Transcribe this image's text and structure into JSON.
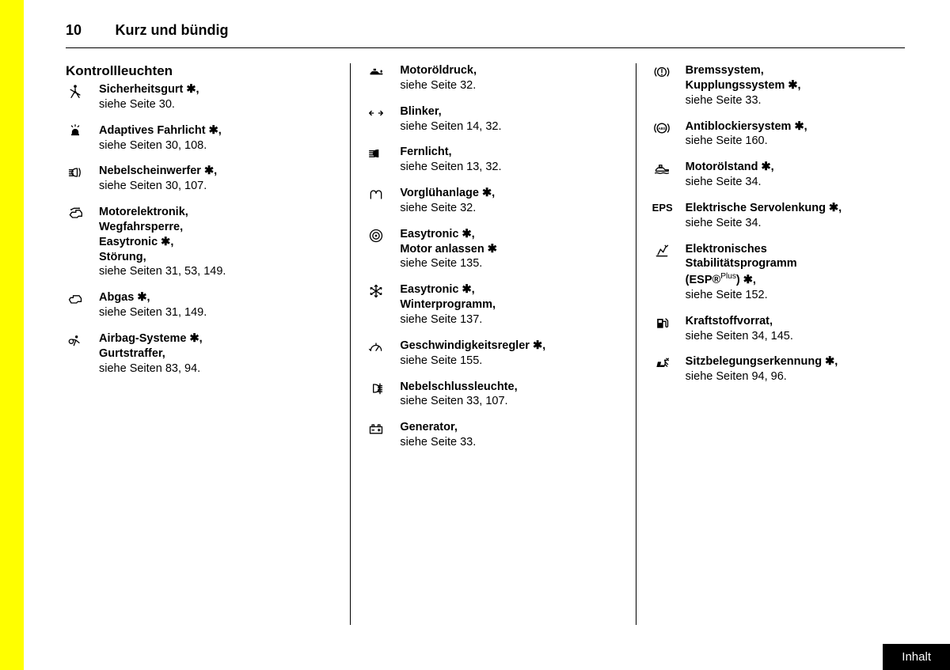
{
  "page_number": "10",
  "section_title": "Kurz und bündig",
  "heading": "Kontrollleuchten",
  "star": "✱",
  "columns": [
    {
      "items": [
        {
          "icon": "seatbelt",
          "label": "Sicherheitsgurt ",
          "has_star": true,
          "suffix": ",",
          "ref": "siehe Seite 30."
        },
        {
          "icon": "adaptive-light",
          "label": "Adaptives Fahrlicht ",
          "has_star": true,
          "suffix": ",",
          "ref": "siehe Seiten 30, 108."
        },
        {
          "icon": "fog-front",
          "label": "Nebelscheinwerfer ",
          "has_star": true,
          "suffix": ",",
          "ref": "siehe Seiten 30, 107."
        },
        {
          "icon": "engine-electronics",
          "label": "Motorelektronik,\nWegfahrsperre,\nEasytronic ",
          "has_star": true,
          "suffix": ",\nStörung,",
          "ref": "siehe Seiten 31, 53, 149."
        },
        {
          "icon": "exhaust",
          "label": "Abgas ",
          "has_star": true,
          "suffix": ",",
          "ref": "siehe Seiten 31, 149."
        },
        {
          "icon": "airbag",
          "label": "Airbag-Systeme ",
          "has_star": true,
          "suffix": ",\nGurtstraffer,",
          "ref": "siehe Seiten 83, 94."
        }
      ]
    },
    {
      "items": [
        {
          "icon": "oil-pressure",
          "label": "Motoröldruck,",
          "has_star": false,
          "suffix": "",
          "ref": "siehe Seite 32."
        },
        {
          "icon": "turn-signal",
          "label": "Blinker,",
          "has_star": false,
          "suffix": "",
          "ref": "siehe Seiten 14, 32."
        },
        {
          "icon": "high-beam",
          "label": "Fernlicht,",
          "has_star": false,
          "suffix": "",
          "ref": "siehe Seiten 13, 32."
        },
        {
          "icon": "preheat",
          "label": "Vorglühanlage ",
          "has_star": true,
          "suffix": ",",
          "ref": "siehe Seite 32."
        },
        {
          "icon": "easytronic-start",
          "label": "Easytronic ",
          "has_star": true,
          "suffix": ",\nMotor anlassen ✱",
          "ref": "siehe Seite 135."
        },
        {
          "icon": "winter",
          "label": "Easytronic ",
          "has_star": true,
          "suffix": ",\nWinterprogramm,",
          "ref": "siehe Seite 137."
        },
        {
          "icon": "cruise",
          "label": "Geschwindigkeitsregler ",
          "has_star": true,
          "suffix": ",",
          "ref": "siehe Seite 155."
        },
        {
          "icon": "fog-rear",
          "label": "Nebelschlussleuchte,",
          "has_star": false,
          "suffix": "",
          "ref": "siehe Seiten 33, 107."
        },
        {
          "icon": "battery",
          "label": "Generator,",
          "has_star": false,
          "suffix": "",
          "ref": "siehe Seite 33."
        }
      ]
    },
    {
      "items": [
        {
          "icon": "brake",
          "label": "Bremssystem,\nKupplungssystem ",
          "has_star": true,
          "suffix": ",",
          "ref": "siehe Seite 33."
        },
        {
          "icon": "abs",
          "label": "Antiblockiersystem ",
          "has_star": true,
          "suffix": ",",
          "ref": "siehe Seite 160."
        },
        {
          "icon": "oil-level",
          "label": "Motorölstand ",
          "has_star": true,
          "suffix": ",",
          "ref": "siehe Seite 34."
        },
        {
          "icon": "eps-text",
          "label": "Elektrische Servolenkung ",
          "has_star": true,
          "suffix": ",",
          "ref": "siehe Seite 34."
        },
        {
          "icon": "esp",
          "label": "Elektronisches\nStabilitätsprogramm\n(ESP®",
          "has_star": false,
          "suffix": "",
          "esp_sup": "Plus",
          "esp_tail": ") ✱,",
          "ref": "siehe Seite 152."
        },
        {
          "icon": "fuel",
          "label": "Kraftstoffvorrat,",
          "has_star": false,
          "suffix": "",
          "ref": "siehe Seiten 34, 145."
        },
        {
          "icon": "seat-occupancy",
          "label": "Sitzbelegungserkennung ",
          "has_star": true,
          "suffix": ",",
          "ref": "siehe Seiten 94, 96."
        }
      ]
    }
  ],
  "footer_button": "Inhalt",
  "colors": {
    "bg": "#ffffff",
    "fg": "#000000",
    "accent": "#ffff00"
  }
}
